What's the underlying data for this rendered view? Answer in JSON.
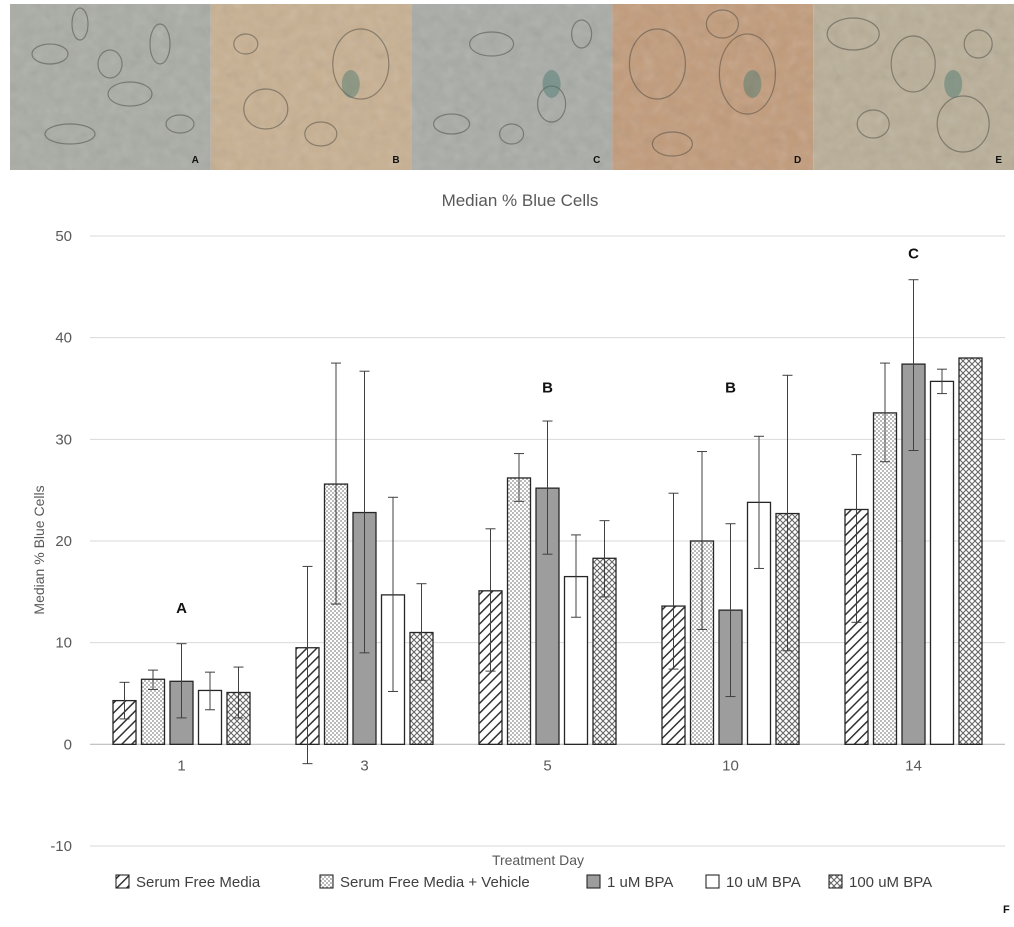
{
  "micrographs": [
    {
      "label": "A",
      "bg": "#a9aba4"
    },
    {
      "label": "B",
      "bg": "#c8b091"
    },
    {
      "label": "C",
      "bg": "#a8aba6"
    },
    {
      "label": "D",
      "bg": "#c29b7a"
    },
    {
      "label": "E",
      "bg": "#b9ae97"
    }
  ],
  "figure_label": "F",
  "chart_data": {
    "type": "bar",
    "title": "Median % Blue Cells",
    "xlabel": "Treatment Day",
    "ylabel": "Median % Blue Cells",
    "ylim": [
      -10,
      50
    ],
    "yticks": [
      -10,
      0,
      10,
      20,
      30,
      40,
      50
    ],
    "grid": true,
    "legend_position": "bottom",
    "categories": [
      "1",
      "3",
      "5",
      "10",
      "14"
    ],
    "series": [
      {
        "name": "Serum Free Media",
        "pattern": "diagonal",
        "values": [
          4.3,
          9.5,
          15.1,
          13.6,
          23.1
        ],
        "err_low": [
          2.5,
          -1.9,
          7.2,
          7.4,
          12.0
        ],
        "err_high": [
          6.1,
          17.5,
          21.2,
          24.7,
          28.5
        ]
      },
      {
        "name": "Serum Free Media + Vehicle",
        "pattern": "dots",
        "values": [
          6.4,
          25.6,
          26.2,
          20.0,
          32.6
        ],
        "err_low": [
          5.4,
          13.8,
          23.9,
          11.3,
          27.8
        ],
        "err_high": [
          7.3,
          37.5,
          28.6,
          28.8,
          37.5
        ]
      },
      {
        "name": "1 uM BPA",
        "pattern": "solid-gray",
        "values": [
          6.2,
          22.8,
          25.2,
          13.2,
          37.4
        ],
        "err_low": [
          2.6,
          9.0,
          18.7,
          4.7,
          28.9
        ],
        "err_high": [
          9.9,
          36.7,
          31.8,
          21.7,
          45.7
        ]
      },
      {
        "name": "10 uM BPA",
        "pattern": "white",
        "values": [
          5.3,
          14.7,
          16.5,
          23.8,
          35.7
        ],
        "err_low": [
          3.4,
          5.2,
          12.5,
          17.3,
          34.5
        ],
        "err_high": [
          7.1,
          24.3,
          20.6,
          30.3,
          36.9
        ]
      },
      {
        "name": "100 uM BPA",
        "pattern": "crosshatch",
        "values": [
          5.1,
          11.0,
          18.3,
          22.7,
          38.0
        ],
        "err_low": [
          2.6,
          6.3,
          14.5,
          9.2,
          38.0
        ],
        "err_high": [
          7.6,
          15.8,
          22.0,
          36.3,
          38.0
        ]
      }
    ],
    "annotations": [
      {
        "category": "1",
        "text": "A",
        "y": 12.9
      },
      {
        "category": "5",
        "text": "B",
        "y": 34.6
      },
      {
        "category": "10",
        "text": "B",
        "y": 34.6
      },
      {
        "category": "14",
        "text": "C",
        "y": 47.8
      }
    ]
  }
}
